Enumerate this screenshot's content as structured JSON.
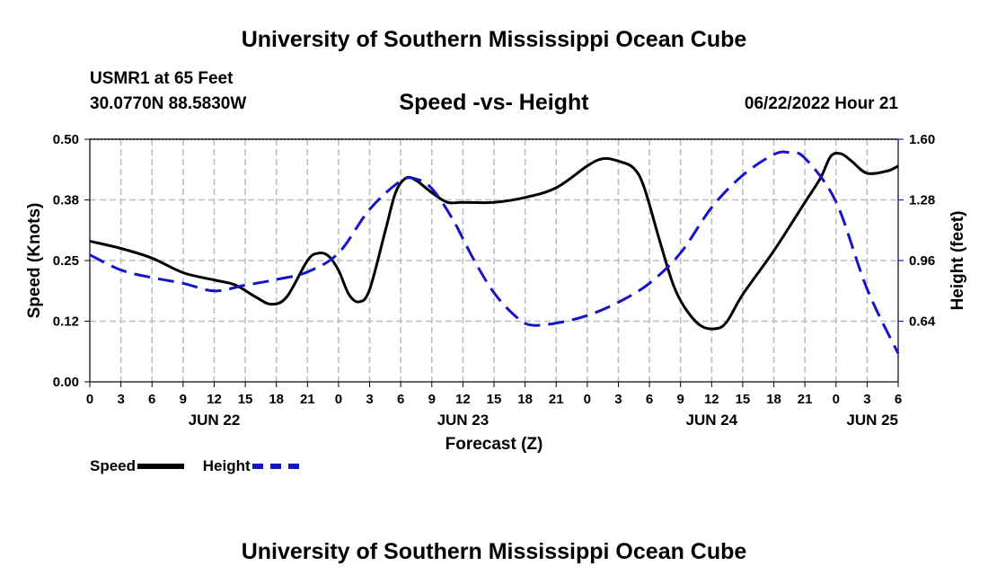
{
  "page": {
    "title": "University of Southern Mississippi Ocean Cube",
    "station": "USMR1 at 65 Feet",
    "coordinates": "30.0770N  88.5830W",
    "footer_title": "University of Southern Mississippi Ocean Cube"
  },
  "chart_data": {
    "type": "line",
    "title": "Speed -vs- Height",
    "timestamp": "06/22/2022 Hour 21",
    "xlabel": "Forecast (Z)",
    "ylabel": "Speed (Knots)",
    "y2label": "Height (feet)",
    "x_unit": "hours since JUN 22 00Z",
    "xlim": [
      0,
      78
    ],
    "ylim": [
      0,
      0.5
    ],
    "y2lim": [
      0.32,
      1.6
    ],
    "grid": true,
    "x_ticks": [
      {
        "x": 0,
        "label": "0"
      },
      {
        "x": 3,
        "label": "3"
      },
      {
        "x": 6,
        "label": "6"
      },
      {
        "x": 9,
        "label": "9"
      },
      {
        "x": 12,
        "label": "12"
      },
      {
        "x": 15,
        "label": "15"
      },
      {
        "x": 18,
        "label": "18"
      },
      {
        "x": 21,
        "label": "21"
      },
      {
        "x": 24,
        "label": "0"
      },
      {
        "x": 27,
        "label": "3"
      },
      {
        "x": 30,
        "label": "6"
      },
      {
        "x": 33,
        "label": "9"
      },
      {
        "x": 36,
        "label": "12"
      },
      {
        "x": 39,
        "label": "15"
      },
      {
        "x": 42,
        "label": "18"
      },
      {
        "x": 45,
        "label": "21"
      },
      {
        "x": 48,
        "label": "0"
      },
      {
        "x": 51,
        "label": "3"
      },
      {
        "x": 54,
        "label": "6"
      },
      {
        "x": 57,
        "label": "9"
      },
      {
        "x": 60,
        "label": "12"
      },
      {
        "x": 63,
        "label": "15"
      },
      {
        "x": 66,
        "label": "18"
      },
      {
        "x": 69,
        "label": "21"
      },
      {
        "x": 72,
        "label": "0"
      },
      {
        "x": 75,
        "label": "3"
      },
      {
        "x": 78,
        "label": "6"
      }
    ],
    "date_labels": [
      {
        "x": 12,
        "label": "JUN 22"
      },
      {
        "x": 36,
        "label": "JUN 23"
      },
      {
        "x": 60,
        "label": "JUN 24"
      },
      {
        "x": 78,
        "label": "JUN 25"
      }
    ],
    "y_ticks": [
      {
        "value": 0.0,
        "label": "0.00"
      },
      {
        "value": 0.125,
        "label": "0.12"
      },
      {
        "value": 0.25,
        "label": "0.25"
      },
      {
        "value": 0.375,
        "label": "0.38"
      },
      {
        "value": 0.5,
        "label": "0.50"
      }
    ],
    "y2_ticks": [
      {
        "value": 0.64,
        "label": "0.64"
      },
      {
        "value": 0.96,
        "label": "0.96"
      },
      {
        "value": 1.28,
        "label": "1.28"
      },
      {
        "value": 1.6,
        "label": "1.60"
      }
    ],
    "series": [
      {
        "name": "Speed",
        "axis": "left",
        "color": "#000000",
        "style": "solid",
        "x": [
          0,
          3,
          6,
          9,
          12,
          14,
          16,
          17.5,
          19,
          21,
          22,
          23,
          24,
          25,
          26,
          27,
          28.5,
          29.5,
          30.5,
          31.5,
          33,
          34.5,
          36,
          39,
          42,
          45,
          48,
          49.5,
          51,
          52.5,
          53.5,
          55,
          56.3,
          57.5,
          59,
          60.5,
          61.5,
          63,
          66,
          69,
          70.5,
          71.5,
          72.5,
          73.5,
          75,
          77,
          78
        ],
        "values": [
          0.29,
          0.275,
          0.255,
          0.225,
          0.21,
          0.2,
          0.175,
          0.16,
          0.175,
          0.25,
          0.265,
          0.26,
          0.23,
          0.18,
          0.165,
          0.19,
          0.31,
          0.39,
          0.42,
          0.415,
          0.39,
          0.37,
          0.37,
          0.37,
          0.38,
          0.4,
          0.445,
          0.46,
          0.455,
          0.44,
          0.4,
          0.29,
          0.2,
          0.15,
          0.115,
          0.11,
          0.125,
          0.18,
          0.27,
          0.37,
          0.42,
          0.465,
          0.47,
          0.455,
          0.43,
          0.435,
          0.445
        ]
      },
      {
        "name": "Height",
        "axis": "right",
        "color": "#1414c8",
        "style": "dashed",
        "x": [
          0,
          3,
          6,
          9,
          12,
          15,
          18,
          21,
          24,
          27,
          30,
          31.5,
          33,
          35,
          37,
          39,
          41,
          42.5,
          45,
          48,
          51,
          54,
          57,
          60,
          63,
          66,
          67.5,
          69,
          72,
          75,
          78
        ],
        "values": [
          0.99,
          0.91,
          0.87,
          0.84,
          0.8,
          0.83,
          0.86,
          0.9,
          1.0,
          1.23,
          1.38,
          1.39,
          1.34,
          1.18,
          0.97,
          0.79,
          0.67,
          0.62,
          0.63,
          0.67,
          0.74,
          0.84,
          1.0,
          1.24,
          1.41,
          1.52,
          1.53,
          1.5,
          1.27,
          0.81,
          0.47
        ]
      }
    ],
    "legend": [
      {
        "label": "Speed",
        "color": "#000000",
        "style": "solid"
      },
      {
        "label": "Height",
        "color": "#1414c8",
        "style": "dashed"
      }
    ],
    "legend_position": "bottom-left"
  }
}
